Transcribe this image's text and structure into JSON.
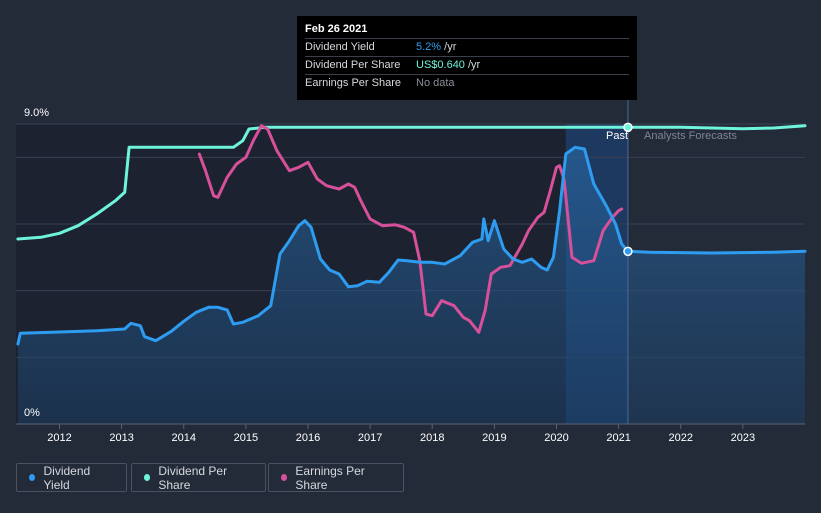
{
  "tooltip": {
    "date": "Feb 26 2021",
    "rows": [
      {
        "label": "Dividend Yield",
        "value": "5.2%",
        "unit": " /yr",
        "color": "#2e9cf0"
      },
      {
        "label": "Dividend Per Share",
        "value": "US$0.640",
        "unit": " /yr",
        "color": "#6ff4dc"
      },
      {
        "label": "Earnings Per Share",
        "value": "No data",
        "unit": "",
        "color": "#8a8f99"
      }
    ]
  },
  "labels": {
    "past": "Past",
    "forecast": "Analysts Forecasts"
  },
  "legend": [
    {
      "label": "Dividend Yield",
      "color": "#2e9cf0"
    },
    {
      "label": "Dividend Per Share",
      "color": "#6ff4dc"
    },
    {
      "label": "Earnings Per Share",
      "color": "#d6509a"
    }
  ],
  "chart_data": {
    "type": "line",
    "title": "",
    "y_ticks": [
      "9.0%",
      "0%"
    ],
    "ylim": [
      0,
      9.0
    ],
    "xlim": [
      2011.3,
      2024.0
    ],
    "x_ticks": [
      2012,
      2013,
      2014,
      2015,
      2016,
      2017,
      2018,
      2019,
      2020,
      2021,
      2022,
      2023
    ],
    "forecast_start": 2021.15,
    "series": [
      {
        "name": "Dividend Yield",
        "color": "#2e9cf0",
        "unit": "%",
        "points": [
          [
            2011.33,
            2.4
          ],
          [
            2011.37,
            2.72
          ],
          [
            2012.0,
            2.76
          ],
          [
            2012.6,
            2.8
          ],
          [
            2013.05,
            2.85
          ],
          [
            2013.15,
            3.02
          ],
          [
            2013.3,
            2.95
          ],
          [
            2013.37,
            2.62
          ],
          [
            2013.55,
            2.5
          ],
          [
            2013.8,
            2.78
          ],
          [
            2014.0,
            3.08
          ],
          [
            2014.2,
            3.35
          ],
          [
            2014.4,
            3.5
          ],
          [
            2014.55,
            3.5
          ],
          [
            2014.7,
            3.42
          ],
          [
            2014.8,
            3.0
          ],
          [
            2014.95,
            3.05
          ],
          [
            2015.2,
            3.25
          ],
          [
            2015.4,
            3.55
          ],
          [
            2015.55,
            5.1
          ],
          [
            2015.7,
            5.5
          ],
          [
            2015.85,
            5.95
          ],
          [
            2015.95,
            6.1
          ],
          [
            2016.05,
            5.9
          ],
          [
            2016.2,
            4.95
          ],
          [
            2016.35,
            4.62
          ],
          [
            2016.5,
            4.5
          ],
          [
            2016.65,
            4.12
          ],
          [
            2016.8,
            4.15
          ],
          [
            2016.95,
            4.28
          ],
          [
            2017.15,
            4.25
          ],
          [
            2017.3,
            4.55
          ],
          [
            2017.45,
            4.92
          ],
          [
            2017.6,
            4.9
          ],
          [
            2017.8,
            4.85
          ],
          [
            2018.0,
            4.85
          ],
          [
            2018.2,
            4.8
          ],
          [
            2018.45,
            5.05
          ],
          [
            2018.65,
            5.45
          ],
          [
            2018.8,
            5.55
          ],
          [
            2018.83,
            6.15
          ],
          [
            2018.9,
            5.5
          ],
          [
            2019.0,
            6.1
          ],
          [
            2019.15,
            5.25
          ],
          [
            2019.3,
            4.95
          ],
          [
            2019.45,
            4.85
          ],
          [
            2019.6,
            4.95
          ],
          [
            2019.75,
            4.7
          ],
          [
            2019.85,
            4.62
          ],
          [
            2019.95,
            5.0
          ],
          [
            2020.05,
            6.4
          ],
          [
            2020.15,
            8.1
          ],
          [
            2020.3,
            8.3
          ],
          [
            2020.45,
            8.25
          ],
          [
            2020.6,
            7.2
          ],
          [
            2020.8,
            6.55
          ],
          [
            2020.95,
            6.0
          ],
          [
            2021.05,
            5.4
          ],
          [
            2021.15,
            5.18
          ],
          [
            2021.5,
            5.15
          ],
          [
            2022.5,
            5.13
          ],
          [
            2023.5,
            5.15
          ],
          [
            2024.0,
            5.18
          ]
        ]
      },
      {
        "name": "Dividend Per Share",
        "color": "#6ff4dc",
        "unit": "%-scale",
        "points": [
          [
            2011.33,
            5.55
          ],
          [
            2011.7,
            5.6
          ],
          [
            2012.0,
            5.72
          ],
          [
            2012.3,
            5.95
          ],
          [
            2012.6,
            6.3
          ],
          [
            2012.9,
            6.7
          ],
          [
            2013.05,
            6.95
          ],
          [
            2013.12,
            8.3
          ],
          [
            2014.5,
            8.3
          ],
          [
            2014.8,
            8.3
          ],
          [
            2014.95,
            8.5
          ],
          [
            2015.05,
            8.85
          ],
          [
            2015.3,
            8.9
          ],
          [
            2016.0,
            8.9
          ],
          [
            2018.0,
            8.9
          ],
          [
            2020.0,
            8.9
          ],
          [
            2021.15,
            8.9
          ],
          [
            2022.0,
            8.9
          ],
          [
            2022.5,
            8.88
          ],
          [
            2023.0,
            8.86
          ],
          [
            2023.5,
            8.88
          ],
          [
            2024.0,
            8.95
          ]
        ]
      },
      {
        "name": "Earnings Per Share",
        "color": "#d6509a",
        "unit": "%-scale",
        "points": [
          [
            2014.25,
            8.1
          ],
          [
            2014.35,
            7.6
          ],
          [
            2014.48,
            6.85
          ],
          [
            2014.55,
            6.8
          ],
          [
            2014.7,
            7.4
          ],
          [
            2014.85,
            7.8
          ],
          [
            2015.0,
            8.0
          ],
          [
            2015.12,
            8.5
          ],
          [
            2015.25,
            8.95
          ],
          [
            2015.35,
            8.85
          ],
          [
            2015.5,
            8.2
          ],
          [
            2015.7,
            7.6
          ],
          [
            2015.85,
            7.7
          ],
          [
            2016.0,
            7.85
          ],
          [
            2016.15,
            7.35
          ],
          [
            2016.3,
            7.15
          ],
          [
            2016.5,
            7.05
          ],
          [
            2016.65,
            7.2
          ],
          [
            2016.75,
            7.1
          ],
          [
            2016.85,
            6.7
          ],
          [
            2017.0,
            6.15
          ],
          [
            2017.2,
            5.95
          ],
          [
            2017.4,
            5.98
          ],
          [
            2017.55,
            5.9
          ],
          [
            2017.7,
            5.75
          ],
          [
            2017.8,
            4.9
          ],
          [
            2017.9,
            3.3
          ],
          [
            2018.0,
            3.25
          ],
          [
            2018.15,
            3.7
          ],
          [
            2018.35,
            3.55
          ],
          [
            2018.5,
            3.2
          ],
          [
            2018.6,
            3.1
          ],
          [
            2018.75,
            2.75
          ],
          [
            2018.85,
            3.4
          ],
          [
            2018.95,
            4.5
          ],
          [
            2019.1,
            4.7
          ],
          [
            2019.25,
            4.75
          ],
          [
            2019.45,
            5.4
          ],
          [
            2019.55,
            5.8
          ],
          [
            2019.7,
            6.2
          ],
          [
            2019.8,
            6.35
          ],
          [
            2019.9,
            7.0
          ],
          [
            2020.0,
            7.7
          ],
          [
            2020.05,
            7.75
          ],
          [
            2020.12,
            7.35
          ],
          [
            2020.25,
            5.0
          ],
          [
            2020.4,
            4.82
          ],
          [
            2020.6,
            4.9
          ],
          [
            2020.75,
            5.8
          ],
          [
            2020.9,
            6.2
          ],
          [
            2021.0,
            6.4
          ],
          [
            2021.05,
            6.45
          ]
        ]
      }
    ]
  }
}
